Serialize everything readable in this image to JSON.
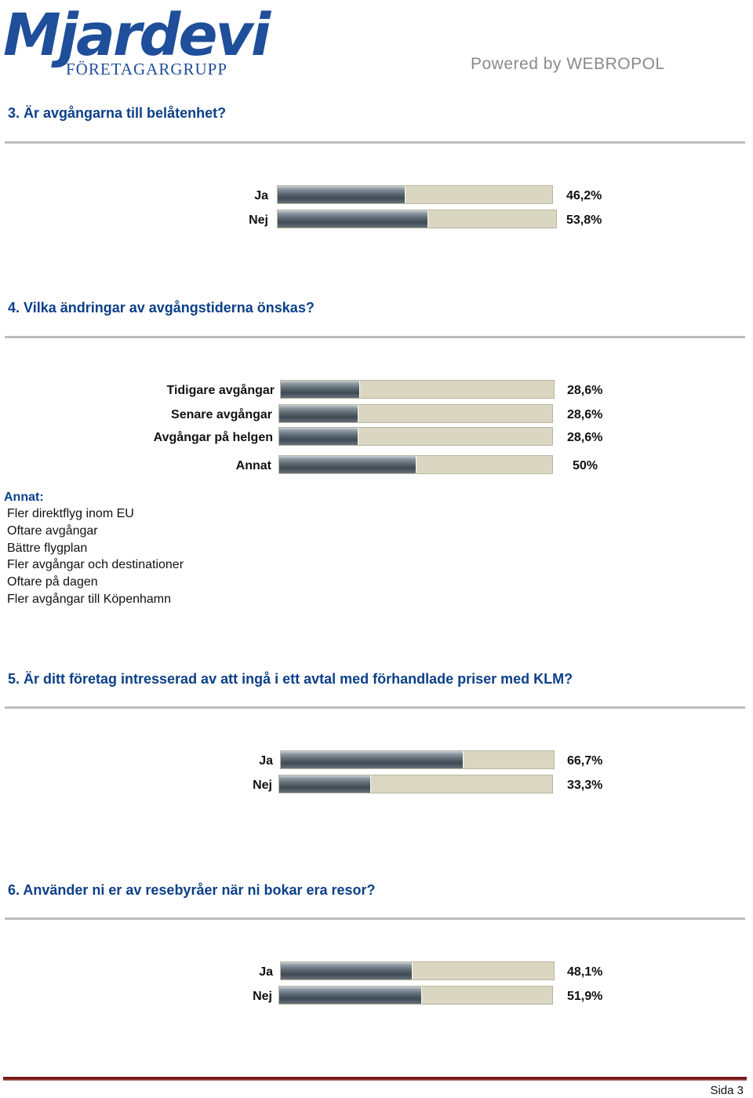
{
  "header": {
    "logo_main": "Mjardevi",
    "logo_sub": "FÖRETAGARGRUPP",
    "powered_by": "Powered by WEBROPOL"
  },
  "questions": [
    {
      "title": "3. Är avgångarna till belåtenhet?",
      "answers": [
        {
          "label": "Ja",
          "percent_text": "46,2%",
          "value": 46.2
        },
        {
          "label": "Nej",
          "percent_text": "53,8%",
          "value": 53.8
        }
      ]
    },
    {
      "title": "4. Vilka ändringar av avgångstiderna önskas?",
      "answers": [
        {
          "label": "Tidigare avgångar",
          "percent_text": "28,6%",
          "value": 28.6
        },
        {
          "label": "Senare avgångar",
          "percent_text": "28,6%",
          "value": 28.6
        },
        {
          "label": "Avgångar på helgen",
          "percent_text": "28,6%",
          "value": 28.6
        },
        {
          "label": "Annat",
          "percent_text": "50%",
          "value": 50
        }
      ],
      "other_heading": "Annat:",
      "other_responses": [
        "Fler direktflyg inom EU",
        "Oftare avgångar",
        "Bättre flygplan",
        "Fler avgångar och destinationer",
        "Oftare på dagen",
        "Fler avgångar till Köpenhamn"
      ]
    },
    {
      "title": "5. Är ditt företag intresserad av att ingå i ett avtal med förhandlade priser med KLM?",
      "answers": [
        {
          "label": "Ja",
          "percent_text": "66,7%",
          "value": 66.7
        },
        {
          "label": "Nej",
          "percent_text": "33,3%",
          "value": 33.3
        }
      ]
    },
    {
      "title": "6. Använder ni er av resebyråer när ni bokar era resor?",
      "answers": [
        {
          "label": "Ja",
          "percent_text": "48,1%",
          "value": 48.1
        },
        {
          "label": "Nej",
          "percent_text": "51,9%",
          "value": 51.9
        }
      ]
    }
  ],
  "footer": {
    "page_label": "Sida 3"
  },
  "colors": {
    "title_blue": "#0b3f88",
    "bar_track": "#d9d6c2",
    "bar_fill": "#4a555e",
    "footer_rule": "#7a1818"
  }
}
